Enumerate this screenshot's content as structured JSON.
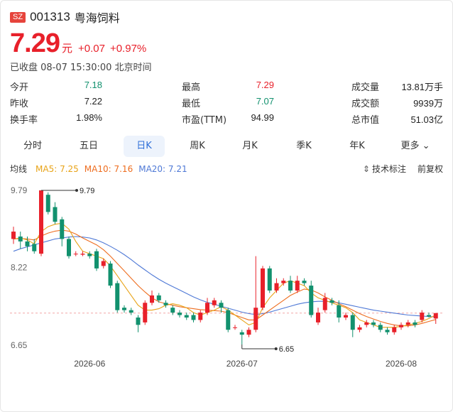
{
  "header": {
    "exchange_badge": "SZ",
    "code": "001313",
    "name": "粤海饲料"
  },
  "quote": {
    "price": "7.29",
    "unit": "元",
    "change": "+0.07",
    "change_pct": "+0.97%",
    "status": "已收盘 08-07 15:30:00 北京时间"
  },
  "stats": [
    {
      "label": "今开",
      "value": "7.18",
      "color": "green"
    },
    {
      "label": "最高",
      "value": "7.29",
      "color": "red"
    },
    {
      "label": "成交量",
      "value": "13.81万手",
      "color": "dark"
    },
    {
      "label": "昨收",
      "value": "7.22",
      "color": "dark"
    },
    {
      "label": "最低",
      "value": "7.07",
      "color": "green"
    },
    {
      "label": "成交额",
      "value": "9939万",
      "color": "dark"
    },
    {
      "label": "换手率",
      "value": "1.98%",
      "color": "dark"
    },
    {
      "label": "市盈(TTM)",
      "value": "94.99",
      "color": "dark"
    },
    {
      "label": "总市值",
      "value": "51.03亿",
      "color": "dark"
    }
  ],
  "tabs": [
    "分时",
    "五日",
    "日K",
    "周K",
    "月K",
    "季K",
    "年K",
    "更多"
  ],
  "active_tab": "日K",
  "ma": {
    "title": "均线",
    "ma5": "MA5: 7.25",
    "ma10": "MA10: 7.16",
    "ma20": "MA20: 7.21"
  },
  "tools": {
    "indicator": "技术标注",
    "adjust": "前复权"
  },
  "colors": {
    "up": "#e8202a",
    "down": "#12916e",
    "ma5": "#e8a317",
    "ma10": "#ee6d1f",
    "ma20": "#4f79d6",
    "active_tab": "#2f6fd8"
  },
  "chart_data": {
    "type": "candlestick",
    "y_ticks": [
      "9.79",
      "8.22",
      "6.65"
    ],
    "x_ticks": [
      "2026-06",
      "2026-07",
      "2026-08"
    ],
    "high_marker": "9.79",
    "low_marker": "6.65",
    "last_close_line": 7.29,
    "ylim": [
      6.65,
      9.79
    ],
    "candles": [
      [
        8.8,
        8.95,
        8.7,
        9.05
      ],
      [
        8.85,
        8.75,
        8.6,
        8.95
      ],
      [
        8.75,
        8.65,
        8.55,
        8.85
      ],
      [
        8.7,
        8.55,
        8.5,
        8.8
      ],
      [
        8.5,
        9.79,
        8.45,
        9.79
      ],
      [
        9.7,
        9.35,
        9.3,
        9.75
      ],
      [
        9.45,
        9.15,
        9.1,
        9.55
      ],
      [
        9.2,
        8.8,
        8.65,
        9.25
      ],
      [
        8.8,
        8.45,
        8.4,
        8.85
      ],
      [
        8.5,
        8.5,
        8.45,
        8.55
      ],
      [
        8.48,
        8.5,
        8.45,
        8.55
      ],
      [
        8.5,
        8.45,
        8.4,
        8.55
      ],
      [
        8.55,
        8.2,
        8.15,
        8.6
      ],
      [
        8.25,
        8.35,
        8.2,
        8.4
      ],
      [
        8.3,
        7.85,
        7.8,
        8.35
      ],
      [
        7.9,
        7.35,
        7.3,
        7.95
      ],
      [
        7.4,
        7.35,
        7.3,
        7.45
      ],
      [
        7.35,
        7.3,
        7.25,
        7.4
      ],
      [
        7.2,
        7.05,
        6.9,
        7.25
      ],
      [
        7.1,
        7.5,
        7.05,
        7.55
      ],
      [
        7.5,
        7.65,
        7.45,
        7.75
      ],
      [
        7.65,
        7.55,
        7.5,
        7.7
      ],
      [
        7.5,
        7.45,
        7.4,
        7.55
      ],
      [
        7.4,
        7.3,
        7.25,
        7.45
      ],
      [
        7.3,
        7.25,
        7.2,
        7.35
      ],
      [
        7.25,
        7.2,
        7.15,
        7.3
      ],
      [
        7.25,
        7.15,
        7.1,
        7.3
      ],
      [
        7.15,
        7.3,
        7.1,
        7.35
      ],
      [
        7.3,
        7.5,
        7.25,
        7.6
      ],
      [
        7.45,
        7.55,
        7.4,
        7.6
      ],
      [
        7.5,
        7.4,
        7.3,
        7.55
      ],
      [
        7.35,
        6.95,
        6.9,
        7.4
      ],
      [
        7.0,
        7.0,
        6.95,
        7.05
      ],
      [
        6.9,
        6.85,
        6.65,
        6.95
      ],
      [
        6.85,
        6.95,
        6.8,
        7.0
      ],
      [
        6.95,
        7.4,
        6.9,
        8.45
      ],
      [
        7.4,
        8.2,
        7.35,
        8.25
      ],
      [
        8.2,
        7.75,
        7.7,
        8.25
      ],
      [
        7.75,
        7.9,
        7.7,
        8.0
      ],
      [
        7.9,
        7.95,
        7.85,
        8.0
      ],
      [
        7.95,
        7.75,
        7.7,
        8.05
      ],
      [
        7.75,
        7.95,
        7.7,
        8.05
      ],
      [
        7.95,
        7.9,
        7.85,
        8.0
      ],
      [
        7.85,
        7.25,
        7.2,
        7.95
      ],
      [
        7.1,
        7.3,
        7.05,
        7.4
      ],
      [
        7.35,
        7.6,
        7.3,
        7.7
      ],
      [
        7.55,
        7.5,
        7.45,
        7.6
      ],
      [
        7.45,
        7.2,
        7.1,
        7.55
      ],
      [
        7.2,
        7.25,
        7.15,
        7.3
      ],
      [
        7.25,
        6.95,
        6.8,
        7.3
      ],
      [
        6.95,
        7.0,
        6.9,
        7.05
      ],
      [
        7.05,
        7.1,
        7.0,
        7.15
      ],
      [
        7.1,
        7.05,
        7.0,
        7.15
      ],
      [
        7.05,
        6.95,
        6.9,
        7.1
      ],
      [
        6.95,
        6.9,
        6.85,
        7.0
      ],
      [
        6.9,
        7.0,
        6.85,
        7.05
      ],
      [
        7.0,
        7.05,
        6.95,
        7.1
      ],
      [
        7.05,
        7.1,
        7.0,
        7.15
      ],
      [
        7.1,
        7.05,
        7.0,
        7.15
      ],
      [
        7.15,
        7.3,
        7.1,
        7.35
      ],
      [
        7.25,
        7.22,
        7.2,
        7.3
      ],
      [
        7.18,
        7.29,
        7.07,
        7.29
      ]
    ],
    "ma5": [
      8.8,
      8.82,
      8.78,
      8.7,
      8.95,
      9.05,
      9.1,
      9.12,
      9.0,
      8.75,
      8.55,
      8.5,
      8.45,
      8.4,
      8.25,
      8.05,
      7.85,
      7.65,
      7.45,
      7.35,
      7.35,
      7.38,
      7.45,
      7.48,
      7.45,
      7.4,
      7.3,
      7.25,
      7.3,
      7.35,
      7.42,
      7.35,
      7.25,
      7.15,
      7.05,
      7.1,
      7.4,
      7.6,
      7.75,
      7.9,
      7.95,
      7.9,
      7.85,
      7.7,
      7.6,
      7.55,
      7.5,
      7.45,
      7.4,
      7.3,
      7.15,
      7.1,
      7.05,
      7.0,
      7.0,
      7.0,
      7.02,
      7.05,
      7.08,
      7.12,
      7.18,
      7.25
    ],
    "ma10": [
      8.8,
      8.81,
      8.8,
      8.78,
      8.86,
      8.92,
      8.96,
      8.98,
      8.96,
      8.9,
      8.82,
      8.75,
      8.68,
      8.58,
      8.45,
      8.3,
      8.15,
      8.0,
      7.85,
      7.72,
      7.6,
      7.52,
      7.48,
      7.45,
      7.42,
      7.4,
      7.38,
      7.36,
      7.35,
      7.34,
      7.33,
      7.3,
      7.25,
      7.2,
      7.15,
      7.15,
      7.25,
      7.35,
      7.45,
      7.55,
      7.65,
      7.72,
      7.78,
      7.76,
      7.7,
      7.62,
      7.55,
      7.48,
      7.42,
      7.35,
      7.28,
      7.22,
      7.17,
      7.12,
      7.08,
      7.05,
      7.03,
      7.03,
      7.05,
      7.08,
      7.12,
      7.16
    ],
    "ma20": [
      8.55,
      8.6,
      8.64,
      8.68,
      8.72,
      8.76,
      8.8,
      8.82,
      8.84,
      8.85,
      8.84,
      8.82,
      8.78,
      8.72,
      8.65,
      8.57,
      8.48,
      8.38,
      8.27,
      8.17,
      8.07,
      7.98,
      7.9,
      7.83,
      7.76,
      7.69,
      7.62,
      7.56,
      7.51,
      7.47,
      7.43,
      7.39,
      7.35,
      7.31,
      7.28,
      7.26,
      7.28,
      7.31,
      7.35,
      7.39,
      7.43,
      7.47,
      7.5,
      7.52,
      7.53,
      7.53,
      7.52,
      7.5,
      7.47,
      7.44,
      7.41,
      7.38,
      7.35,
      7.33,
      7.31,
      7.29,
      7.27,
      7.25,
      7.24,
      7.23,
      7.22,
      7.21
    ]
  }
}
